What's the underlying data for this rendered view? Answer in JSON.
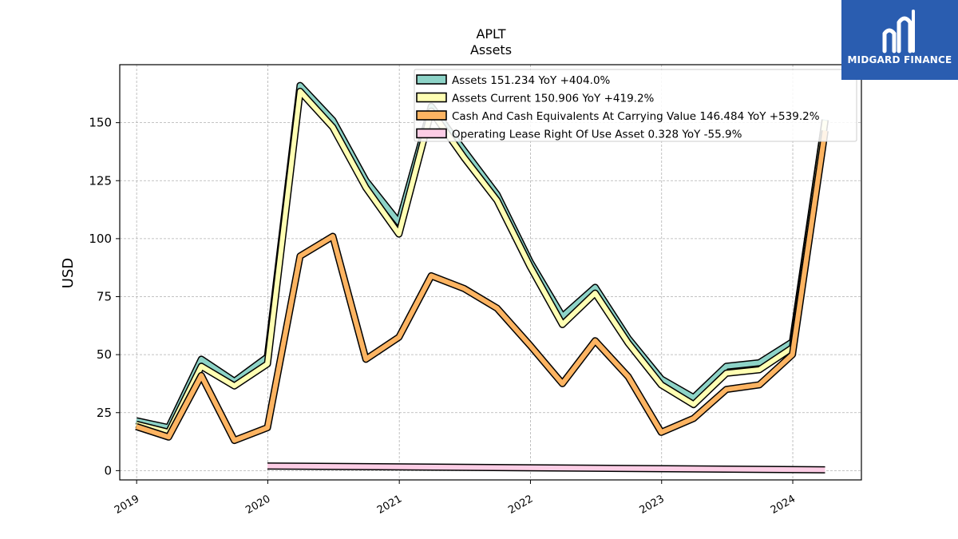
{
  "chart_data": {
    "type": "line",
    "title": "APLT",
    "subtitle": "Assets",
    "xlabel": "",
    "ylabel": "USD",
    "ylim": [
      -4,
      175
    ],
    "xlim": [
      "2018-11-15",
      "2024-07-10"
    ],
    "yticks": [
      0,
      25,
      50,
      75,
      100,
      125,
      150
    ],
    "xticks": [
      "2019",
      "2020",
      "2021",
      "2022",
      "2023",
      "2024"
    ],
    "grid": true,
    "legend_position": "top-right",
    "series": [
      {
        "name": "Assets",
        "legend": "Assets  151.234 YoY +404.0%",
        "color": "#8dd3c7",
        "dates": [
          "2018-12-31",
          "2019-03-31",
          "2019-06-30",
          "2019-09-30",
          "2019-12-31",
          "2020-03-31",
          "2020-06-30",
          "2020-09-30",
          "2020-12-31",
          "2021-03-31",
          "2021-06-30",
          "2021-09-30",
          "2021-12-31",
          "2022-03-31",
          "2022-06-30",
          "2022-09-30",
          "2022-12-31",
          "2023-03-31",
          "2023-06-30",
          "2023-09-30",
          "2023-12-31",
          "2024-03-31"
        ],
        "values": [
          21.5,
          18.5,
          48,
          38.5,
          49,
          166,
          151,
          125,
          107,
          157,
          138,
          119,
          90,
          66.5,
          79,
          57,
          39.5,
          31.5,
          45,
          46.5,
          55.5,
          151.234
        ]
      },
      {
        "name": "Assets Current",
        "legend": "Assets Current  150.906 YoY +419.2%",
        "color": "#ffffb3",
        "dates": [
          "2018-12-31",
          "2019-03-31",
          "2019-06-30",
          "2019-09-30",
          "2019-12-31",
          "2020-03-31",
          "2020-06-30",
          "2020-09-30",
          "2020-12-31",
          "2021-03-31",
          "2021-06-30",
          "2021-09-30",
          "2021-12-31",
          "2022-03-31",
          "2022-06-30",
          "2022-09-30",
          "2022-12-31",
          "2023-03-31",
          "2023-06-30",
          "2023-09-30",
          "2023-12-31",
          "2024-03-31"
        ],
        "values": [
          20,
          16.5,
          45,
          36.5,
          46,
          163.5,
          148,
          122,
          102,
          155,
          135,
          116.5,
          88,
          63,
          76.5,
          55,
          37,
          28.5,
          42,
          43.5,
          53,
          150.906
        ]
      },
      {
        "name": "Cash And Cash Equivalents At Carrying Value",
        "legend": "Cash And Cash Equivalents At Carrying Value  146.484 YoY +539.2%",
        "color": "#fdb462",
        "dates": [
          "2018-12-31",
          "2019-03-31",
          "2019-06-30",
          "2019-09-30",
          "2019-12-31",
          "2020-03-31",
          "2020-06-30",
          "2020-09-30",
          "2020-12-31",
          "2021-03-31",
          "2021-06-30",
          "2021-09-30",
          "2021-12-31",
          "2022-03-31",
          "2022-06-30",
          "2022-09-30",
          "2022-12-31",
          "2023-03-31",
          "2023-06-30",
          "2023-09-30",
          "2023-12-31",
          "2024-03-31"
        ],
        "values": [
          19,
          14.5,
          41,
          13,
          18.5,
          92.5,
          101,
          48,
          57.5,
          84,
          78.5,
          70,
          54,
          37.5,
          56,
          40.5,
          16.5,
          22.5,
          35,
          37,
          50,
          146.484
        ]
      },
      {
        "name": "Operating Lease Right Of Use Asset",
        "legend": "Operating Lease Right Of Use Asset  0.328 YoY -55.9%",
        "color": "#fccde5",
        "dates": [
          "2019-12-31",
          "2024-03-31"
        ],
        "values": [
          2.0,
          0.328
        ]
      }
    ]
  },
  "logo": {
    "text": "MIDGARD FINANCE"
  }
}
